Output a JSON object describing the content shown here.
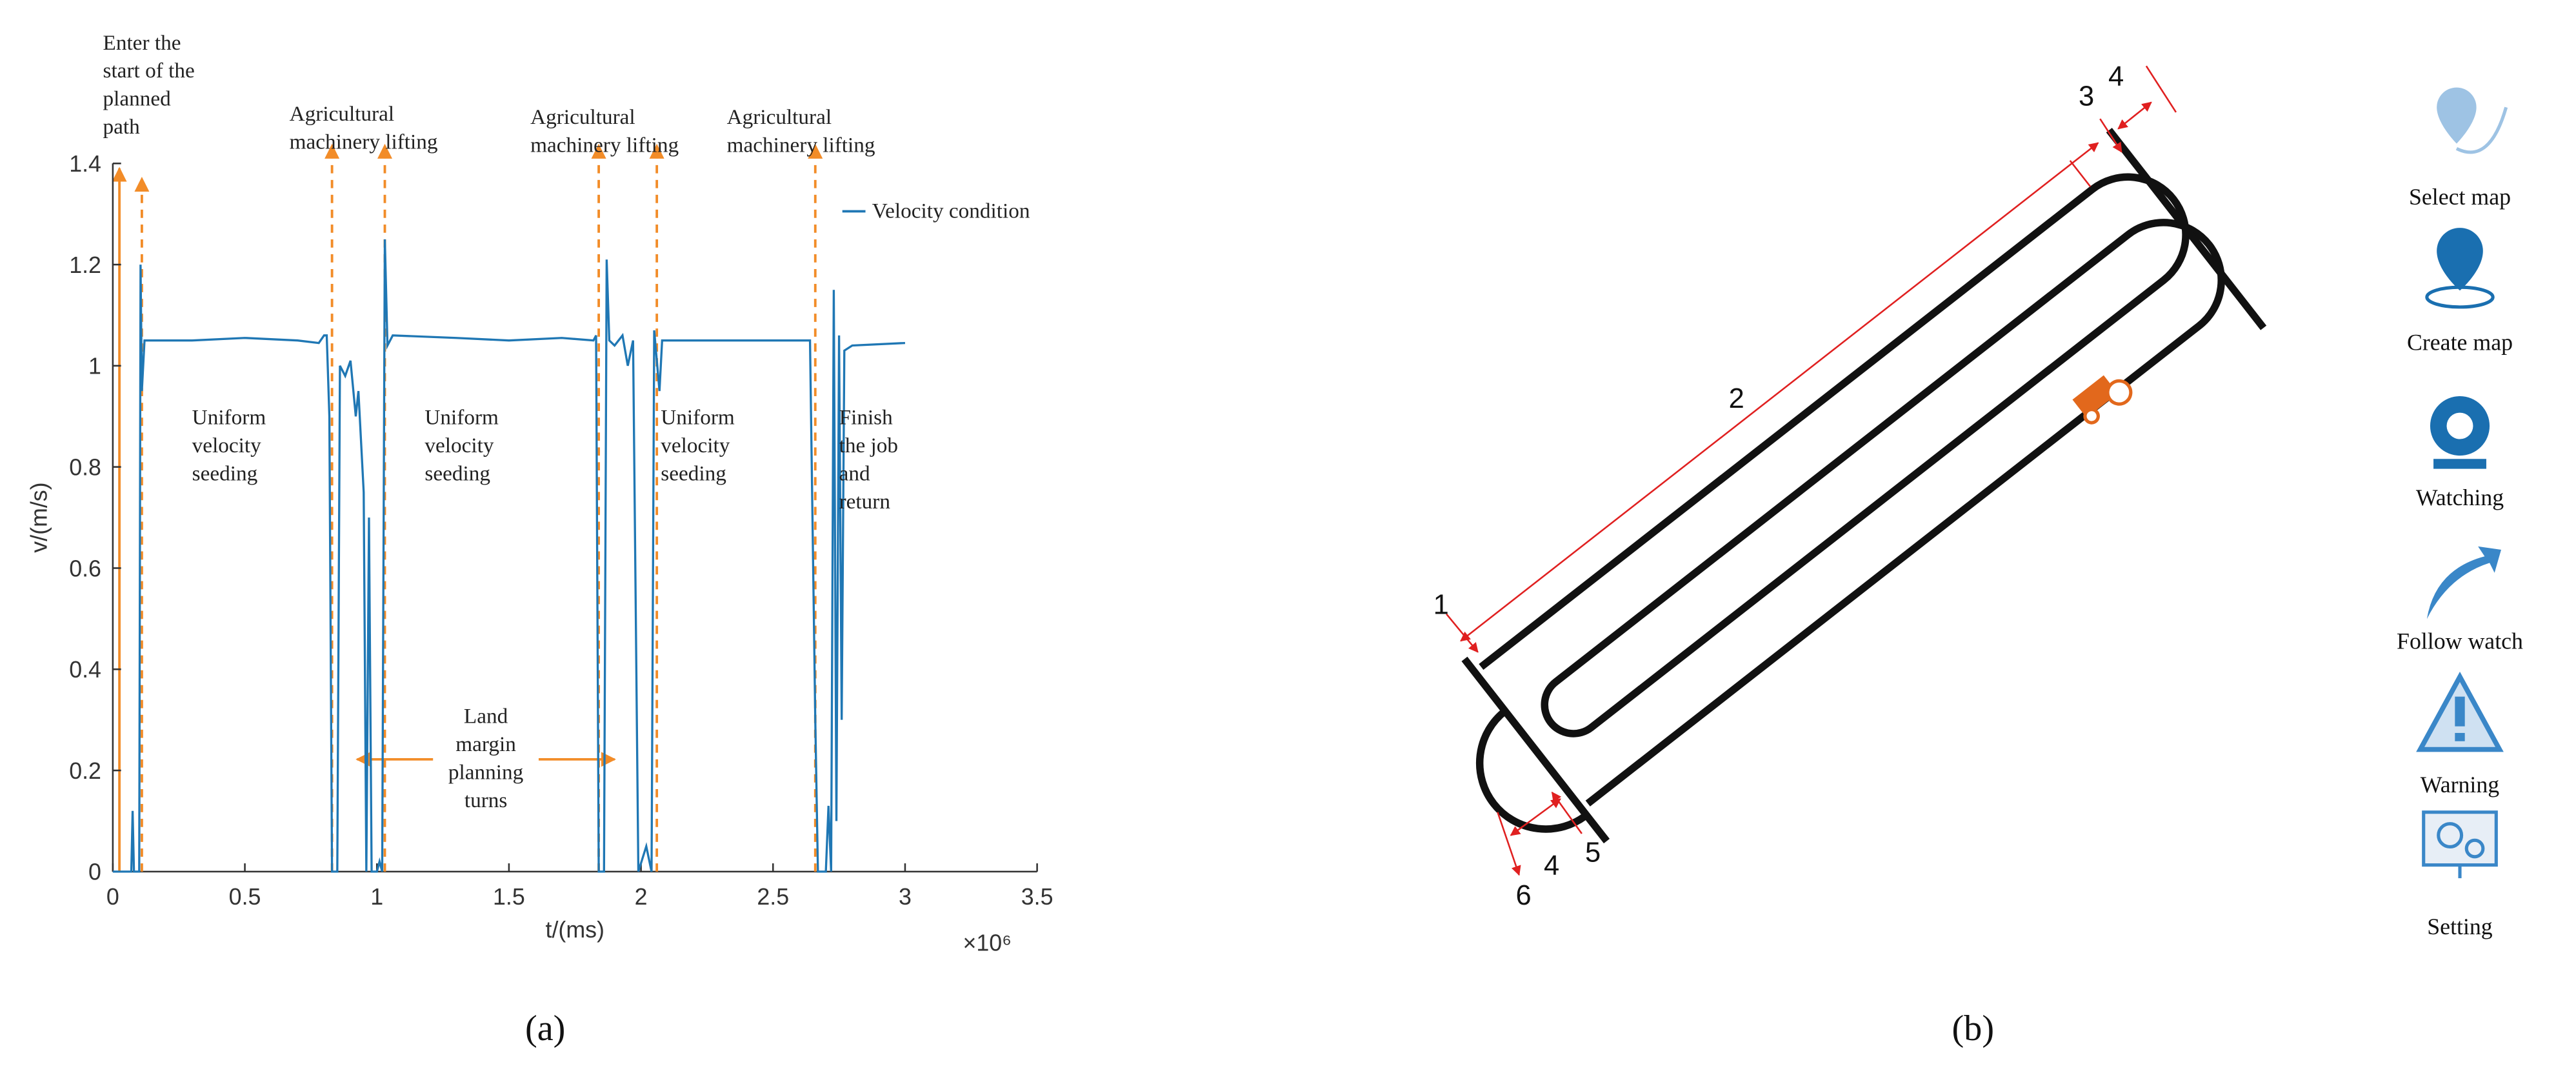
{
  "chart_data": {
    "type": "line",
    "xlabel": "t/(ms)",
    "ylabel": "v/(m/s)",
    "x_offset_label": "×10⁶",
    "xlim": [
      0,
      3.5
    ],
    "xticks": [
      0,
      0.5,
      1,
      1.5,
      2,
      2.5,
      3,
      3.5
    ],
    "ylim": [
      0,
      1.4
    ],
    "yticks": [
      0,
      0.2,
      0.4,
      0.6,
      0.8,
      1,
      1.2,
      1.4
    ],
    "x": [
      0,
      0.07,
      0.075,
      0.08,
      0.1,
      0.105,
      0.11,
      0.12,
      0.3,
      0.5,
      0.7,
      0.78,
      0.8,
      0.81,
      0.82,
      0.83,
      0.85,
      0.86,
      0.88,
      0.9,
      0.92,
      0.93,
      0.95,
      0.96,
      0.97,
      0.98,
      1.0,
      1.01,
      1.02,
      1.03,
      1.04,
      1.06,
      1.3,
      1.5,
      1.7,
      1.82,
      1.83,
      1.84,
      1.86,
      1.87,
      1.88,
      1.9,
      1.93,
      1.95,
      1.97,
      1.99,
      2.02,
      2.04,
      2.05,
      2.07,
      2.08,
      2.2,
      2.4,
      2.6,
      2.64,
      2.66,
      2.67,
      2.7,
      2.71,
      2.72,
      2.73,
      2.74,
      2.75,
      2.76,
      2.77,
      2.8,
      3.0
    ],
    "series": [
      {
        "name": "Velocity condition",
        "color": "#1f77b4",
        "values": [
          0,
          0,
          0.12,
          0,
          0,
          1.2,
          0.95,
          1.05,
          1.05,
          1.055,
          1.05,
          1.045,
          1.06,
          1.06,
          0.9,
          0,
          0,
          1.0,
          0.98,
          1.01,
          0.9,
          0.95,
          0.75,
          0,
          0.7,
          0,
          0,
          0.02,
          0,
          1.25,
          1.04,
          1.06,
          1.055,
          1.05,
          1.055,
          1.05,
          1.06,
          0,
          0,
          1.21,
          1.05,
          1.04,
          1.06,
          1.0,
          1.05,
          0,
          0.05,
          0,
          1.07,
          0.95,
          1.05,
          1.05,
          1.05,
          1.05,
          1.05,
          0.3,
          0,
          0,
          0.13,
          0,
          1.15,
          0.1,
          1.06,
          0.3,
          1.03,
          1.04,
          1.045
        ]
      }
    ],
    "legend": "upper right",
    "event_lines": {
      "color": "#f28c28",
      "x": [
        0.11,
        0.83,
        1.03,
        1.84,
        2.06,
        2.66
      ]
    },
    "annotations": [
      {
        "lines": [
          "Enter the",
          "start of the",
          "planned",
          "path"
        ]
      },
      {
        "lines": [
          "Agricultural",
          "machinery lifting"
        ]
      },
      {
        "lines": [
          "Agricultural",
          "machinery lifting"
        ]
      },
      {
        "lines": [
          "Agricultural",
          "machinery lifting"
        ]
      },
      {
        "lines": [
          "Uniform",
          "velocity",
          "seeding"
        ]
      },
      {
        "lines": [
          "Uniform",
          "velocity",
          "seeding"
        ]
      },
      {
        "lines": [
          "Uniform",
          "velocity",
          "seeding"
        ]
      },
      {
        "lines": [
          "Finish",
          "the job",
          "and",
          "return"
        ]
      },
      {
        "lines": [
          "Land",
          "margin",
          "planning",
          "turns"
        ]
      }
    ]
  },
  "panel_labels": [
    "(a)",
    "(b)"
  ],
  "diagram": {
    "labels": [
      "1",
      "2",
      "3",
      "4",
      "4",
      "5",
      "6"
    ],
    "menu": [
      "Select map",
      "Create map",
      "Watching",
      "Follow watch",
      "Warning",
      "Setting"
    ]
  }
}
